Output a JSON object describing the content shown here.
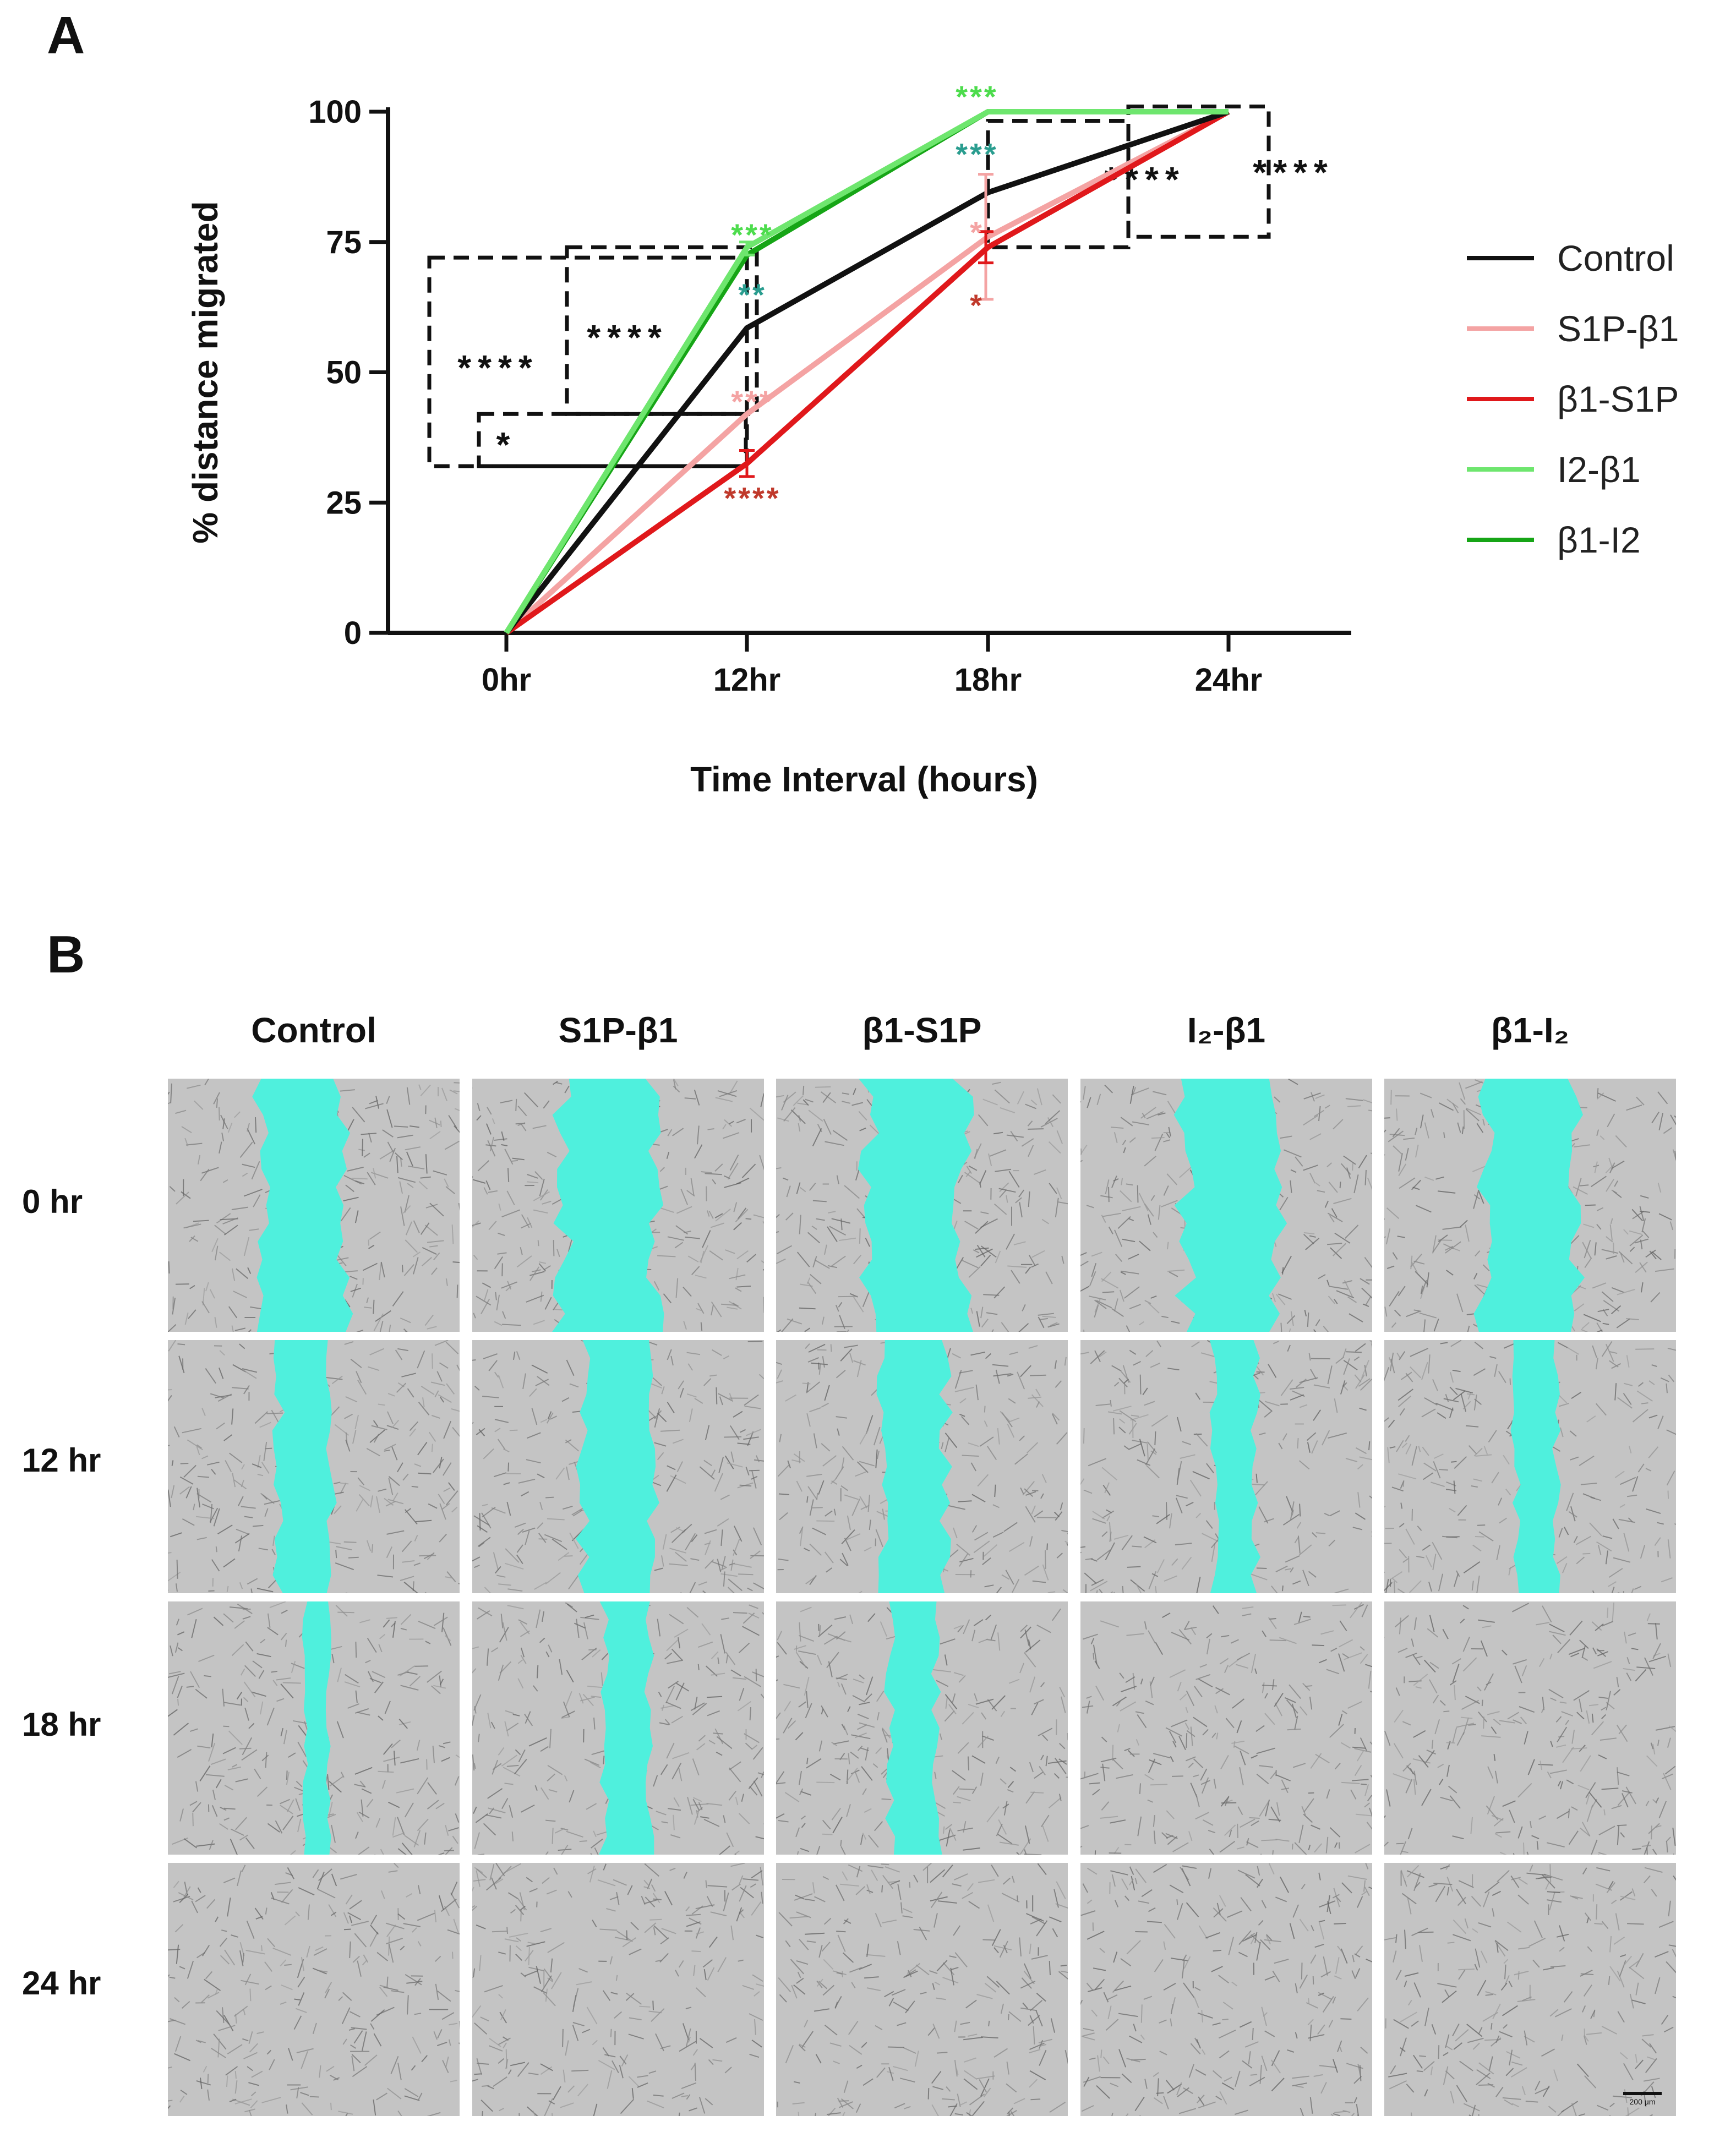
{
  "panel_a_letter": "A",
  "panel_b_letter": "B",
  "chart_data": {
    "type": "line",
    "title": "",
    "xlabel": "Time Interval (hours)",
    "ylabel": "% distance migrated",
    "categories": [
      "0hr",
      "12hr",
      "18hr",
      "24hr"
    ],
    "yticks": [
      "0",
      "25",
      "50",
      "75",
      "100"
    ],
    "ylim": [
      0,
      100
    ],
    "grid": false,
    "legend_position": "right",
    "series": [
      {
        "name": "Control",
        "color": "#111111",
        "values": [
          0,
          58.5,
          84.5,
          100
        ]
      },
      {
        "name": "S1P-β1",
        "color": "#f4a3a3",
        "values": [
          0,
          42,
          76,
          100
        ]
      },
      {
        "name": "β1-S1P",
        "color": "#e0181b",
        "values": [
          0,
          32.5,
          74,
          100
        ]
      },
      {
        "name": "I2-β1",
        "color": "#6ee66e",
        "values": [
          0,
          74,
          100,
          100
        ]
      },
      {
        "name": "β1-I2",
        "color": "#16a516",
        "values": [
          0,
          72.5,
          100,
          100
        ]
      }
    ],
    "error_bars": [
      {
        "series": "S1P-β1",
        "x": "18hr",
        "low": 64,
        "high": 88
      },
      {
        "series": "β1-S1P",
        "x": "12hr",
        "low": 30,
        "high": 35
      },
      {
        "series": "β1-S1P",
        "x": "18hr",
        "low": 71,
        "high": 77
      },
      {
        "series": "I2-β1",
        "x": "12hr",
        "low": 72.5,
        "high": 75
      }
    ],
    "annotations": [
      {
        "text": "***",
        "color": "#4ddc4d",
        "x": "12hr",
        "y": 77.5
      },
      {
        "text": "**",
        "color": "#2a9d8f",
        "x": "12hr",
        "y": 66
      },
      {
        "text": "***",
        "color": "#f4a3a3",
        "x": "12hr",
        "y": 45.5
      },
      {
        "text": "****",
        "color": "#c0392b",
        "x": "12hr",
        "y": 27
      },
      {
        "text": "***",
        "color": "#4ddc4d",
        "x": "18hr",
        "y": 104
      },
      {
        "text": "***",
        "color": "#2a9d8f",
        "x": "18hr",
        "y": 93
      },
      {
        "text": "*",
        "color": "#f4a3a3",
        "x": "18hr",
        "y": 78
      },
      {
        "text": "*",
        "color": "#c0392b",
        "x": "18hr",
        "y": 64
      }
    ],
    "significance_boxes": [
      {
        "label": "****",
        "from": "0hr",
        "to": "12hr",
        "y_low": 32,
        "y_high": 72
      },
      {
        "label": "****",
        "from": "0hr",
        "to": "12hr",
        "y_low": 42,
        "y_high": 74
      },
      {
        "label": "*",
        "from": "0hr",
        "to": "12hr",
        "y_low": 32,
        "y_high": 42
      },
      {
        "label": "****",
        "from": "18hr",
        "to": "24hr",
        "y_low": 74,
        "y_high": 101
      },
      {
        "label": "****",
        "from": "18hr",
        "to": "24hr",
        "y_low": 76,
        "y_high": 101
      }
    ]
  },
  "panel_b": {
    "columns": [
      "Control",
      "S1P-β1",
      "β1-S1P",
      "I₂-β1",
      "β1-I₂"
    ],
    "rows": [
      "0 hr",
      "12 hr",
      "18 hr",
      "24 hr"
    ],
    "gap_color": "#4ff0dd",
    "image_background": "#b9b9b9",
    "scale_bar_label": "200 μm"
  }
}
